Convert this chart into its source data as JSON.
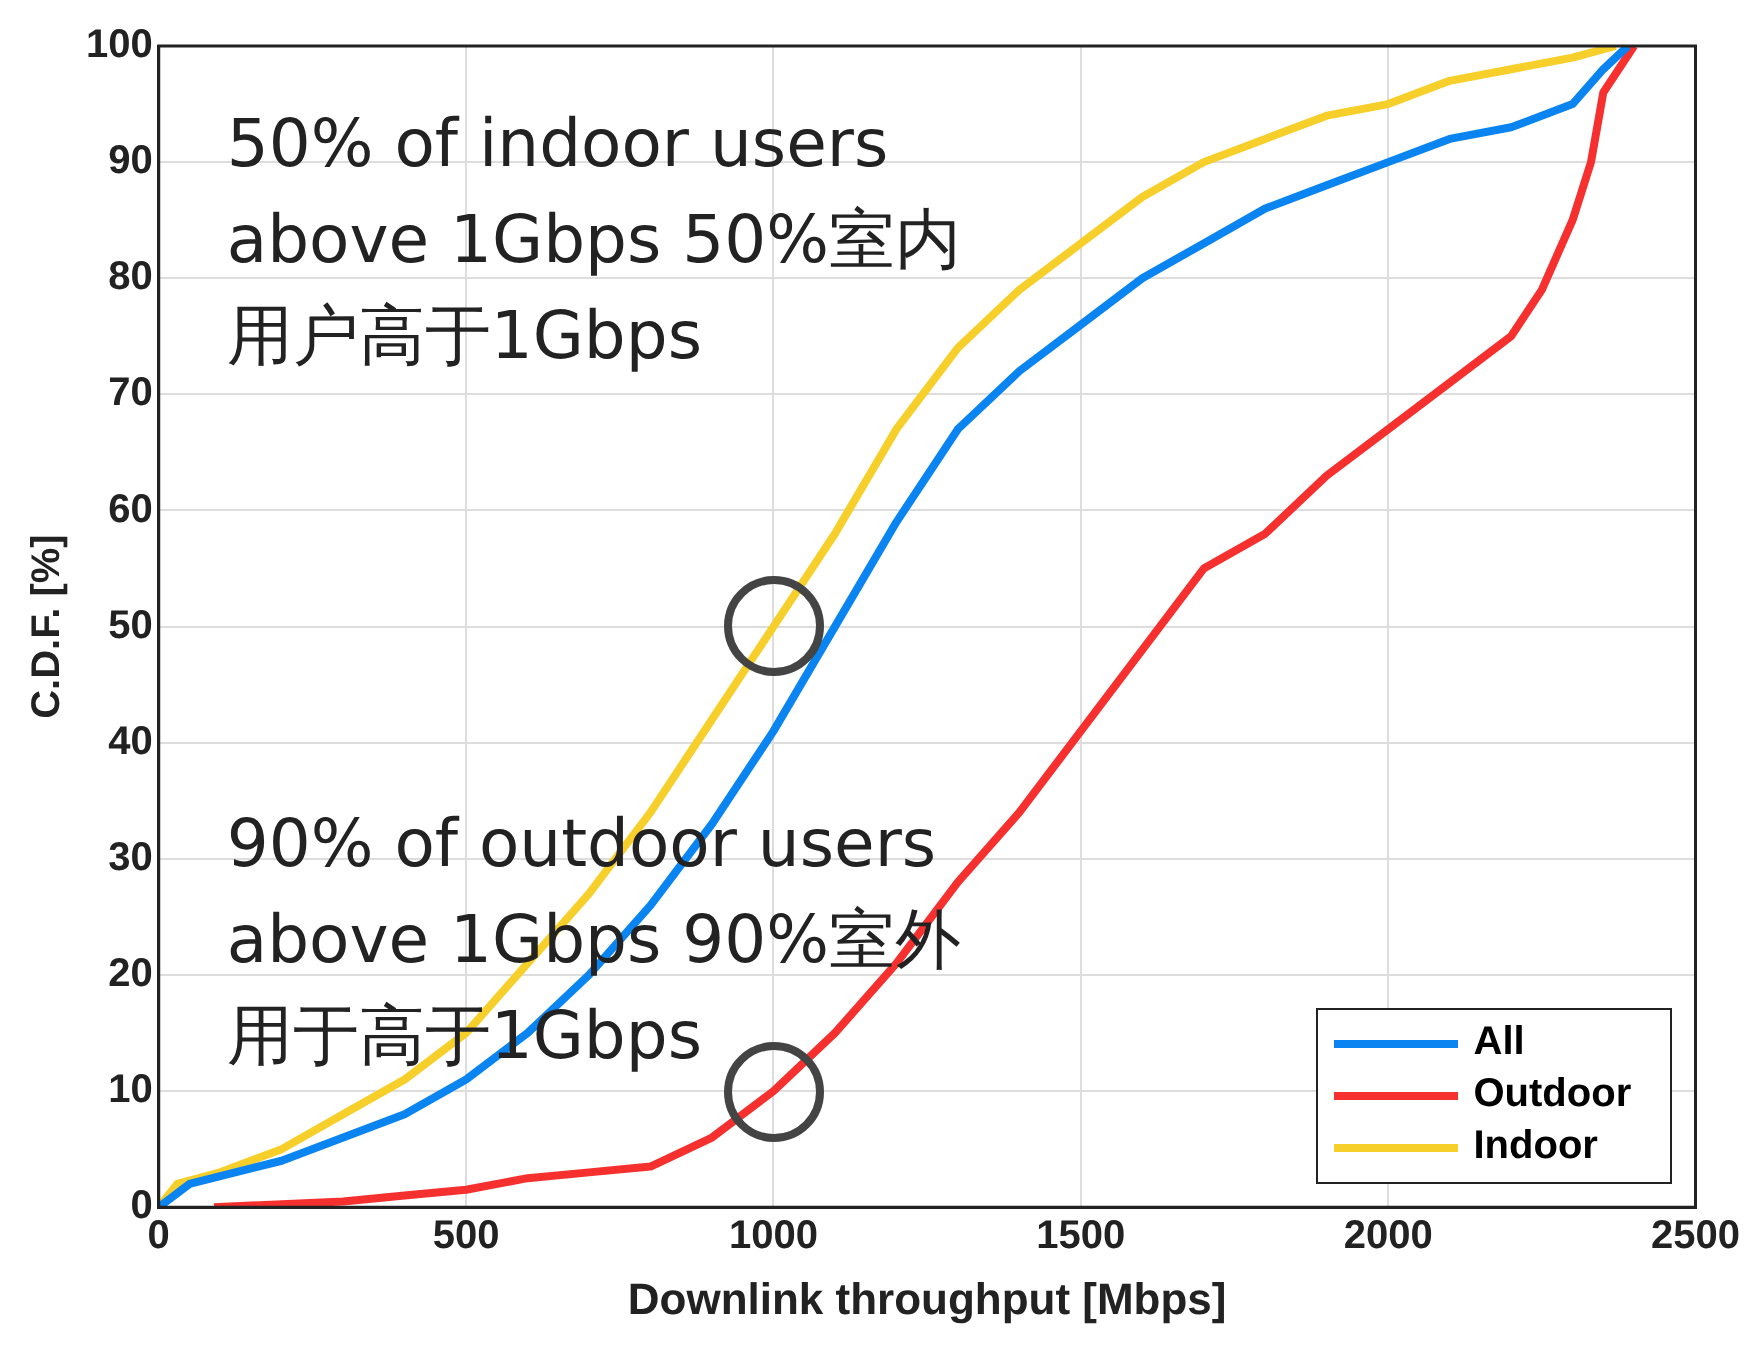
{
  "chart_data": {
    "type": "line",
    "xlabel": "Downlink throughput [Mbps]",
    "ylabel": "C.D.F. [%]",
    "xlim": [
      0,
      2500
    ],
    "xticks": [
      0,
      500,
      1000,
      1500,
      2000,
      2500
    ],
    "ylim": [
      0,
      100
    ],
    "yticks": [
      0,
      10,
      20,
      30,
      40,
      50,
      60,
      70,
      80,
      90,
      100
    ],
    "grid": true,
    "legend": "bottom right",
    "marker": "none",
    "line_style": "solid",
    "series": [
      {
        "name": "All",
        "color": "#0a84f0",
        "x": [
          0,
          50,
          200,
          300,
          400,
          500,
          600,
          700,
          800,
          900,
          1000,
          1100,
          1200,
          1300,
          1400,
          1500,
          1600,
          1700,
          1800,
          1900,
          2000,
          2100,
          2200,
          2300,
          2350,
          2390
        ],
        "values": [
          0,
          2,
          4,
          6,
          8,
          11,
          15,
          20,
          26,
          33,
          41,
          50,
          59,
          67,
          72,
          76,
          80,
          83,
          86,
          88,
          90,
          92,
          93,
          95,
          98,
          100
        ]
      },
      {
        "name": "Outdoor",
        "color": "#f5302e",
        "x": [
          90,
          300,
          400,
          500,
          600,
          700,
          800,
          900,
          1000,
          1100,
          1200,
          1300,
          1400,
          1500,
          1600,
          1700,
          1800,
          1900,
          2000,
          2100,
          2200,
          2250,
          2300,
          2330,
          2350,
          2400
        ],
        "values": [
          0,
          0.5,
          1,
          1.5,
          2.5,
          3,
          3.5,
          6,
          10,
          15,
          21,
          28,
          34,
          41,
          48,
          55,
          58,
          63,
          67,
          71,
          75,
          79,
          85,
          90,
          96,
          100
        ]
      },
      {
        "name": "Indoor",
        "color": "#f7cf2a",
        "x": [
          0,
          30,
          100,
          200,
          300,
          400,
          500,
          600,
          700,
          800,
          900,
          1000,
          1100,
          1200,
          1300,
          1400,
          1500,
          1600,
          1700,
          1800,
          1900,
          2000,
          2100,
          2200,
          2300,
          2370
        ],
        "values": [
          0,
          2,
          3,
          5,
          8,
          11,
          15,
          21,
          27,
          34,
          42,
          50,
          58,
          67,
          74,
          79,
          83,
          87,
          90,
          92,
          94,
          95,
          97,
          98,
          99,
          100
        ]
      }
    ],
    "annotations": [
      "50% of indoor users above 1Gbps 50%室内用户高于1Gbps",
      "90% of outdoor users above 1Gbps 90%室外用于高于1Gbps"
    ]
  }
}
